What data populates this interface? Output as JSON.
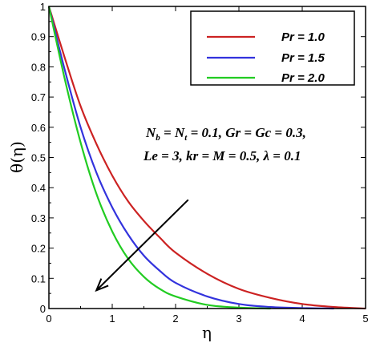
{
  "chart_data": {
    "type": "line",
    "xlabel": "η",
    "ylabel": "θ(η)",
    "xlim": [
      0,
      5
    ],
    "ylim": [
      0,
      1
    ],
    "x_ticks": [
      "0",
      "1",
      "2",
      "3",
      "4",
      "5"
    ],
    "y_ticks": [
      "0",
      "0.1",
      "0.2",
      "0.3",
      "0.4",
      "0.5",
      "0.6",
      "0.7",
      "0.8",
      "0.9",
      "1"
    ],
    "x_tick_values": [
      0,
      1,
      2,
      3,
      4,
      5
    ],
    "y_tick_values": [
      0,
      0.1,
      0.2,
      0.3,
      0.4,
      0.5,
      0.6,
      0.7,
      0.8,
      0.9,
      1
    ],
    "grid": false,
    "legend_position": "top-right",
    "series": [
      {
        "name": "Pr = 1.0",
        "color": "#cc2222",
        "x": [
          0,
          0.25,
          0.5,
          0.75,
          1.0,
          1.25,
          1.5,
          1.75,
          2.0,
          2.5,
          3.0,
          3.5,
          4.0,
          4.5,
          5.0
        ],
        "y": [
          1.0,
          0.83,
          0.67,
          0.545,
          0.44,
          0.355,
          0.29,
          0.235,
          0.185,
          0.115,
          0.065,
          0.035,
          0.015,
          0.005,
          0.0
        ]
      },
      {
        "name": "Pr = 1.5",
        "color": "#3333dd",
        "x": [
          0,
          0.25,
          0.5,
          0.75,
          1.0,
          1.25,
          1.5,
          1.75,
          2.0,
          2.5,
          3.0,
          3.5,
          4.0,
          4.5
        ],
        "y": [
          1.0,
          0.79,
          0.6,
          0.45,
          0.335,
          0.245,
          0.175,
          0.125,
          0.085,
          0.04,
          0.015,
          0.005,
          0.0015,
          0.0
        ]
      },
      {
        "name": "Pr = 2.0",
        "color": "#22cc22",
        "x": [
          0,
          0.25,
          0.5,
          0.75,
          1.0,
          1.25,
          1.5,
          1.75,
          2.0,
          2.5,
          3.0,
          3.5
        ],
        "y": [
          1.0,
          0.76,
          0.55,
          0.38,
          0.255,
          0.165,
          0.105,
          0.065,
          0.04,
          0.012,
          0.003,
          0.0
        ]
      }
    ],
    "annotation_lines": [
      "N_b = N_t = 0.1, Gr = Gc = 0.3,",
      "Le = 3,  kr = M = 0.5, λ = 0.1"
    ],
    "annotation_parts": {
      "line1_a": "N",
      "line1_sub_b": "b",
      "line1_b": " = N",
      "line1_sub_t": "t",
      "line1_c": " = 0.1, Gr = Gc = 0.3,",
      "line2": "Le = 3,  kr = M = 0.5, λ = 0.1"
    },
    "arrow": {
      "direction": "increasing Pr",
      "from": [
        2.2,
        0.36
      ],
      "to": [
        0.75,
        0.06
      ]
    }
  }
}
